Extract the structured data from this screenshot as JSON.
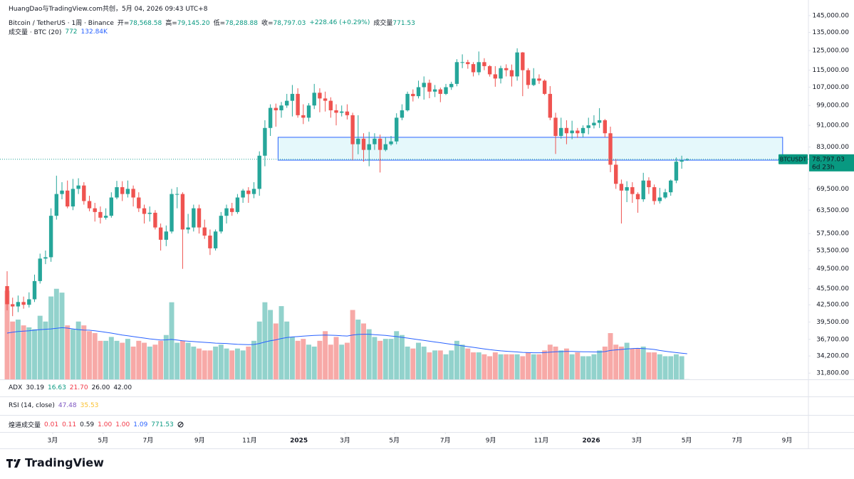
{
  "header": {
    "attribution": "HuangDao与TradingView.com共创，5月 04, 2026 09:43 UTC+8",
    "symbol": "Bitcoin / TetherUS · 1周 · Binance",
    "ohlc": [
      {
        "label": "开=",
        "value": "78,568.58"
      },
      {
        "label": "高=",
        "value": "79,145.20"
      },
      {
        "label": "低=",
        "value": "78,288.88"
      },
      {
        "label": "收=",
        "value": "78,797.03"
      }
    ],
    "change": "+228.46 (+0.29%)",
    "volume": {
      "label": "成交量",
      "value": "771.53"
    }
  },
  "chart_data": {
    "type": "candlestick",
    "log": true,
    "grid": false,
    "up_color": "#26a69a",
    "down_color": "#ef5350",
    "volume_up_color": "rgba(38,166,154,0.5)",
    "volume_down_color": "rgba(239,83,80,0.5)",
    "ma_color": "#2962ff",
    "ylim": [
      30970,
      154900
    ],
    "yticks": [
      {
        "value": 145000,
        "label": "145,000.00"
      },
      {
        "value": 135000,
        "label": "135,000.00"
      },
      {
        "value": 125000,
        "label": "125,000.00"
      },
      {
        "value": 115000,
        "label": "115,000.00"
      },
      {
        "value": 107000,
        "label": "107,000.00"
      },
      {
        "value": 99000,
        "label": "99,000.00"
      },
      {
        "value": 91000,
        "label": "91,000.00"
      },
      {
        "value": 83000,
        "label": "83,000.00"
      },
      {
        "value": 69500,
        "label": "69,500.00"
      },
      {
        "value": 63500,
        "label": "63,500.00"
      },
      {
        "value": 57500,
        "label": "57,500.00"
      },
      {
        "value": 53500,
        "label": "53,500.00"
      },
      {
        "value": 49500,
        "label": "49,500.00"
      },
      {
        "value": 45500,
        "label": "45,500.00"
      },
      {
        "value": 42500,
        "label": "42,500.00"
      },
      {
        "value": 39500,
        "label": "39,500.00"
      },
      {
        "value": 36700,
        "label": "36,700.00"
      },
      {
        "value": 34200,
        "label": "34,200.00"
      },
      {
        "value": 31800,
        "label": "31,800.00"
      }
    ],
    "xlim": [
      -1.3,
      146.1
    ],
    "xticks": [
      {
        "value": 8.3,
        "label": "3月"
      },
      {
        "value": 17.5,
        "label": "5月"
      },
      {
        "value": 25.7,
        "label": "7月"
      },
      {
        "value": 35.1,
        "label": "9月"
      },
      {
        "value": 44.2,
        "label": "11月"
      },
      {
        "value": 53.2,
        "label": "2025"
      },
      {
        "value": 61.6,
        "label": "3月"
      },
      {
        "value": 70.6,
        "label": "5月"
      },
      {
        "value": 79.9,
        "label": "7月"
      },
      {
        "value": 88.2,
        "label": "9月"
      },
      {
        "value": 97.4,
        "label": "11月"
      },
      {
        "value": 106.5,
        "label": "2026"
      },
      {
        "value": 114.8,
        "label": "3月"
      },
      {
        "value": 123.9,
        "label": "5月"
      },
      {
        "value": 133.1,
        "label": "7月"
      },
      {
        "value": 142.2,
        "label": "9月"
      }
    ],
    "open": [
      46000,
      42600,
      42200,
      43000,
      42500,
      43500,
      47000,
      51700,
      52000,
      62000,
      68000,
      69000,
      64500,
      69500,
      70500,
      66000,
      64000,
      63000,
      61500,
      62000,
      67000,
      70000,
      68000,
      69500,
      67000,
      64000,
      62500,
      62800,
      59000,
      56000,
      58000,
      68000,
      68000,
      58500,
      59000,
      64000,
      59000,
      57000,
      54000,
      58000,
      62000,
      64000,
      63000,
      67000,
      69000,
      68000,
      69500,
      80000,
      90000,
      98000,
      97000,
      99000,
      101000,
      104000,
      95000,
      94000,
      99000,
      104500,
      102000,
      101000,
      97000,
      96000,
      96500,
      95000,
      84000,
      86000,
      82000,
      84000,
      86000,
      82000,
      84000,
      85000,
      94000,
      97000,
      104000,
      103000,
      107000,
      109000,
      105000,
      106000,
      104000,
      107000,
      108500,
      119000,
      119000,
      118000,
      114000,
      119000,
      117000,
      113000,
      111000,
      116000,
      115000,
      112000,
      124000,
      115000,
      108000,
      111000,
      110000,
      104000,
      94000,
      87000,
      90000,
      88000,
      89000,
      88000,
      90000,
      91000,
      92000,
      93000,
      88000,
      77000,
      71000,
      69000,
      70000,
      68000,
      66500,
      72000,
      70000,
      66000,
      67000,
      68500,
      72000,
      78000,
      78568.58
    ],
    "high": [
      49000,
      43800,
      44200,
      44000,
      44800,
      48300,
      52800,
      53500,
      64000,
      73500,
      71500,
      72000,
      72500,
      72700,
      71500,
      67500,
      65500,
      64500,
      64000,
      68500,
      71900,
      71800,
      72000,
      70500,
      68500,
      65000,
      64500,
      63500,
      60000,
      59500,
      69500,
      70000,
      68500,
      62500,
      65000,
      65000,
      61000,
      58500,
      58500,
      63000,
      65000,
      65500,
      68000,
      69500,
      70000,
      71500,
      81500,
      93000,
      99500,
      99800,
      100500,
      104000,
      108000,
      106500,
      99500,
      100000,
      108500,
      106500,
      105000,
      102500,
      99500,
      99000,
      99500,
      96000,
      95000,
      88000,
      88500,
      88000,
      87500,
      86500,
      87000,
      95800,
      99500,
      105000,
      106000,
      110000,
      112000,
      110500,
      108000,
      106800,
      108500,
      109500,
      120500,
      123000,
      120200,
      119000,
      124500,
      121000,
      117500,
      117000,
      117200,
      117900,
      117800,
      126200,
      124200,
      116000,
      116000,
      113000,
      110600,
      107500,
      96000,
      94000,
      93000,
      92800,
      90000,
      91000,
      94000,
      95000,
      97900,
      93500,
      90500,
      79000,
      72300,
      71800,
      71500,
      68500,
      74400,
      73000,
      70800,
      69800,
      69500,
      72300,
      79400,
      80000,
      79145.2
    ],
    "low": [
      41500,
      40500,
      41200,
      41800,
      42000,
      43000,
      46500,
      50500,
      51000,
      61000,
      66500,
      64000,
      63500,
      68000,
      65000,
      63200,
      60500,
      60000,
      61000,
      61500,
      66500,
      66000,
      67000,
      64500,
      63000,
      60000,
      60500,
      58500,
      53500,
      54500,
      57500,
      64000,
      49500,
      57500,
      58000,
      57500,
      56200,
      52500,
      53500,
      57500,
      60000,
      62000,
      62500,
      65500,
      65500,
      66800,
      67500,
      76500,
      87000,
      90500,
      94000,
      98000,
      94500,
      94000,
      91500,
      92500,
      97500,
      96200,
      96500,
      94000,
      91000,
      94500,
      93300,
      78500,
      80500,
      78000,
      76500,
      82000,
      74500,
      81500,
      83500,
      84000,
      93000,
      96500,
      100700,
      102000,
      101500,
      102100,
      102600,
      100400,
      103500,
      105800,
      107400,
      116000,
      115700,
      112000,
      112600,
      115000,
      111900,
      107200,
      108700,
      112000,
      107300,
      110000,
      103000,
      106300,
      107500,
      108500,
      103500,
      93000,
      80600,
      86000,
      84000,
      85800,
      86300,
      86500,
      87600,
      89800,
      90000,
      86500,
      74600,
      69500,
      60000,
      65700,
      65500,
      62800,
      65800,
      68000,
      65000,
      65300,
      66600,
      67500,
      71200,
      75700,
      78288.88
    ],
    "close": [
      42600,
      42200,
      43000,
      42500,
      43500,
      47000,
      51700,
      52000,
      62000,
      68000,
      69000,
      64500,
      69500,
      70500,
      66000,
      64000,
      63000,
      61500,
      62000,
      67000,
      70000,
      68000,
      69500,
      67000,
      64000,
      62500,
      62800,
      59000,
      56000,
      58000,
      68000,
      68000,
      58500,
      59000,
      64000,
      59000,
      57000,
      54000,
      58000,
      62000,
      64000,
      63000,
      67000,
      69000,
      68000,
      69500,
      80000,
      90000,
      98000,
      97000,
      99000,
      101000,
      104000,
      95000,
      94000,
      99000,
      104500,
      102000,
      101000,
      97000,
      96000,
      96500,
      95000,
      84000,
      86000,
      82000,
      84000,
      86000,
      82000,
      84000,
      85000,
      94000,
      97000,
      104000,
      103000,
      107000,
      109000,
      105000,
      106000,
      104000,
      107000,
      108500,
      119000,
      119000,
      118000,
      114000,
      119000,
      117000,
      113000,
      111000,
      116000,
      115000,
      112000,
      124000,
      115000,
      108000,
      111000,
      110000,
      104000,
      94000,
      87000,
      90000,
      88000,
      89000,
      88000,
      90000,
      91000,
      92000,
      93000,
      88000,
      77000,
      71000,
      69000,
      70000,
      68000,
      66500,
      72000,
      70000,
      66000,
      67000,
      68500,
      72000,
      78000,
      78500,
      78797.03
    ],
    "vlim": [
      0,
      565000
    ],
    "volume": [
      460000,
      300000,
      310000,
      280000,
      270000,
      260000,
      330000,
      300000,
      430000,
      470000,
      450000,
      280000,
      260000,
      300000,
      280000,
      250000,
      240000,
      200000,
      200000,
      220000,
      200000,
      190000,
      210000,
      170000,
      200000,
      190000,
      170000,
      180000,
      200000,
      230000,
      400000,
      190000,
      200000,
      190000,
      170000,
      160000,
      150000,
      150000,
      170000,
      180000,
      160000,
      150000,
      160000,
      150000,
      170000,
      200000,
      300000,
      400000,
      360000,
      290000,
      380000,
      300000,
      220000,
      200000,
      210000,
      180000,
      170000,
      200000,
      250000,
      180000,
      220000,
      180000,
      190000,
      360000,
      310000,
      290000,
      260000,
      220000,
      200000,
      210000,
      210000,
      250000,
      230000,
      170000,
      160000,
      190000,
      170000,
      140000,
      150000,
      150000,
      130000,
      150000,
      200000,
      180000,
      160000,
      140000,
      140000,
      130000,
      120000,
      140000,
      130000,
      130000,
      130000,
      130000,
      120000,
      140000,
      130000,
      130000,
      150000,
      180000,
      170000,
      150000,
      160000,
      130000,
      140000,
      120000,
      120000,
      130000,
      150000,
      170000,
      240000,
      180000,
      170000,
      190000,
      160000,
      160000,
      170000,
      140000,
      140000,
      130000,
      120000,
      120000,
      130000,
      120000,
      771.53
    ],
    "volume_ma": [
      240000,
      245000,
      248000,
      250000,
      252000,
      255000,
      258000,
      260000,
      262000,
      265000,
      268000,
      266000,
      262000,
      258000,
      256000,
      255000,
      252000,
      248000,
      244000,
      240000,
      235000,
      230000,
      226000,
      222000,
      218000,
      214000,
      210000,
      207000,
      204000,
      205000,
      207000,
      204000,
      200000,
      198000,
      196000,
      194000,
      192000,
      190000,
      188000,
      187000,
      186000,
      184000,
      182000,
      181000,
      180000,
      181000,
      186000,
      194000,
      200000,
      205000,
      212000,
      217000,
      220000,
      222000,
      224000,
      226000,
      228000,
      229000,
      230000,
      229000,
      228000,
      226000,
      225000,
      230000,
      233000,
      234000,
      234000,
      232000,
      230000,
      228000,
      225000,
      222000,
      218000,
      214000,
      210000,
      206000,
      202000,
      198000,
      194000,
      190000,
      186000,
      182000,
      178000,
      174000,
      170000,
      166000,
      162000,
      158000,
      154000,
      151000,
      148000,
      146000,
      144000,
      142000,
      140000,
      139000,
      138000,
      138000,
      139000,
      141000,
      143000,
      144000,
      145000,
      145000,
      144000,
      143000,
      143000,
      142000,
      142000,
      144000,
      150000,
      153000,
      155000,
      158000,
      160000,
      161000,
      160000,
      158000,
      155000,
      150000,
      146000,
      142000,
      139000,
      136000,
      132840
    ],
    "volume_legend": {
      "title": "成交量 · BTC (20)",
      "value": "772",
      "ma": "132.84K"
    },
    "zone": {
      "x": [
        49.4,
        141.4
      ],
      "y": [
        78500,
        86500
      ]
    },
    "last_price": {
      "symbol": "BTCUSDT",
      "label": "78,797.03",
      "countdown": "6d 23h"
    }
  },
  "indicators": [
    {
      "name": "ADX",
      "values": [
        "30.19",
        "16.63",
        "21.70",
        "26.00",
        "42.00"
      ],
      "colors": [
        "#131722",
        "#089981",
        "#f23645",
        "#131722",
        "#131722"
      ]
    },
    {
      "name": "RSI (14, close)",
      "values": [
        "47.48",
        "35.53"
      ],
      "colors": [
        "#7e57c2",
        "#fbc02d"
      ]
    },
    {
      "name": "煌道成交量",
      "values": [
        "0.01",
        "0.11",
        "0.59",
        "1.00",
        "1.00",
        "1.09",
        "771.53"
      ],
      "colors": [
        "#f23645",
        "#f23645",
        "#131722",
        "#f23645",
        "#f23645",
        "#2962ff",
        "#089981"
      ]
    }
  ],
  "brand": "TradingView"
}
